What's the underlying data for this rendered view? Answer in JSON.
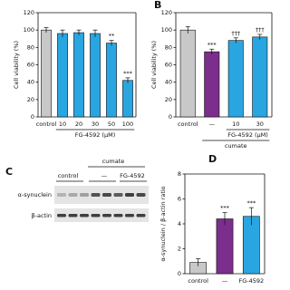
{
  "chart_data": [
    {
      "type": "bar",
      "ylabel": "Cell viability (%)",
      "categories": [
        "control",
        "10",
        "20",
        "30",
        "50",
        "100"
      ],
      "values": [
        100,
        96,
        97,
        96,
        85,
        42
      ],
      "errors": [
        3,
        4,
        3,
        4,
        3,
        3
      ],
      "colors": [
        "#c8c8c8",
        "#29a6e1",
        "#29a6e1",
        "#29a6e1",
        "#29a6e1",
        "#29a6e1"
      ],
      "annotations": [
        null,
        null,
        null,
        null,
        "**",
        "***"
      ],
      "xlabel": "FG-4592 (μM)",
      "ylim": [
        0,
        120
      ],
      "yticks": [
        0,
        20,
        40,
        60,
        80,
        100,
        120
      ]
    },
    {
      "type": "bar",
      "label": "B",
      "ylabel": "Cell viability (%)",
      "categories": [
        "control",
        "—",
        "10",
        "30"
      ],
      "values": [
        100,
        75,
        88,
        92
      ],
      "errors": [
        4,
        3,
        3,
        3
      ],
      "colors": [
        "#c8c8c8",
        "#7b2e8c",
        "#29a6e1",
        "#29a6e1"
      ],
      "annotations": [
        null,
        "***",
        "†††",
        "†††"
      ],
      "xlabel": "FG-4592 (μM)",
      "group_label": "cumate",
      "ylim": [
        0,
        120
      ],
      "yticks": [
        0,
        20,
        40,
        60,
        80,
        100,
        120
      ]
    },
    {
      "type": "bar",
      "label": "D",
      "ylabel": "α-synuclein / β-actin ratio",
      "categories": [
        "control",
        "—",
        "FG-4592"
      ],
      "values": [
        0.9,
        4.4,
        4.6
      ],
      "errors": [
        0.3,
        0.5,
        0.7
      ],
      "colors": [
        "#c8c8c8",
        "#7b2e8c",
        "#29a6e1"
      ],
      "annotations": [
        null,
        "***",
        "***"
      ],
      "ylim": [
        0,
        8
      ],
      "yticks": [
        0,
        2,
        4,
        6,
        8
      ]
    }
  ],
  "blot": {
    "label": "C",
    "group": "cumate",
    "lanes": [
      "control",
      "—",
      "FG-4592"
    ],
    "rows": [
      "α-synuclein",
      "β-actin"
    ]
  }
}
